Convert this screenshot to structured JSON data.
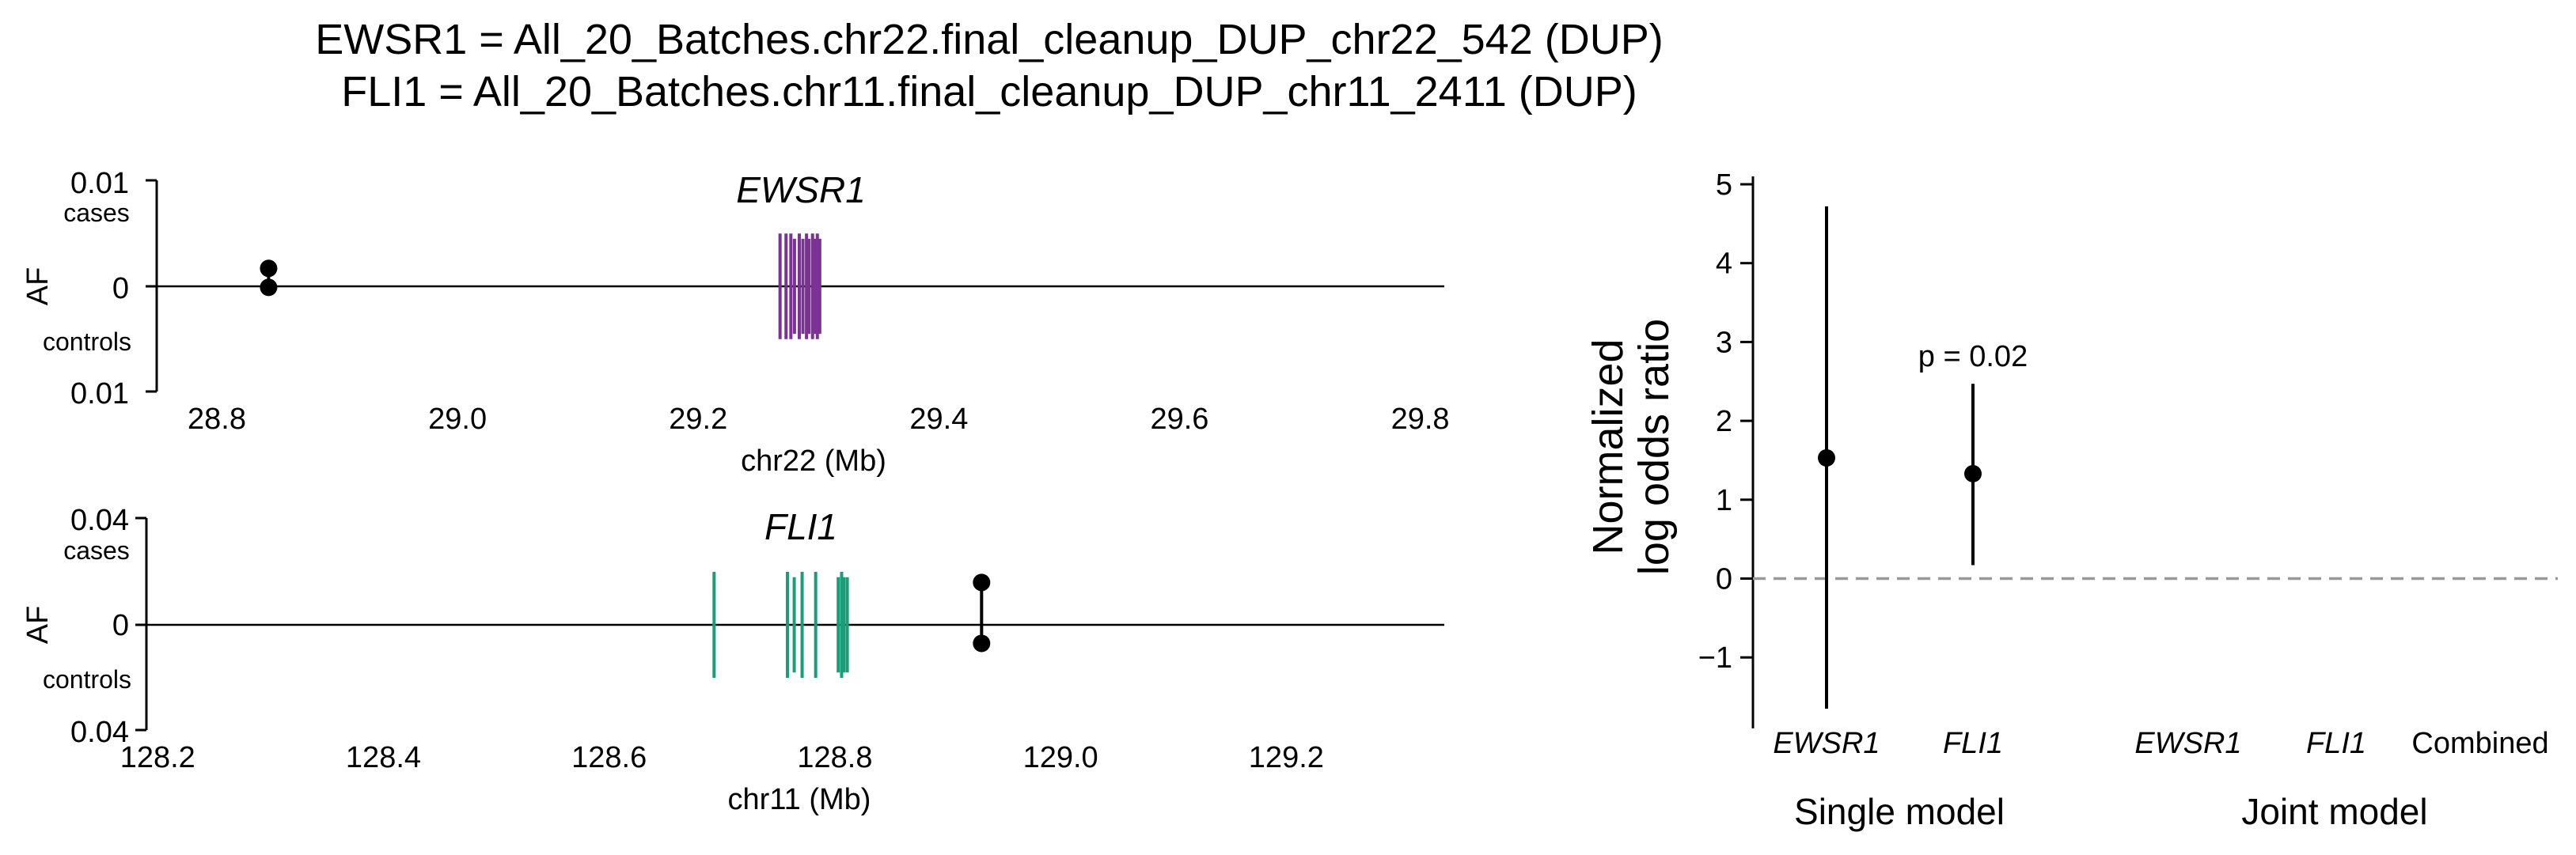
{
  "title_lines": [
    "EWSR1 = All_20_Batches.chr22.final_cleanup_DUP_chr22_542 (DUP)",
    "FLI1 = All_20_Batches.chr11.final_cleanup_DUP_chr11_2411 (DUP)"
  ],
  "colors": {
    "ewsr1": "#7b3294",
    "fli1": "#1a9e77",
    "point": "#000000",
    "axis": "#000000",
    "ref_line": "#999999"
  },
  "chart_data": [
    {
      "type": "scatter",
      "gene": "EWSR1",
      "xlabel": "chr22 (Mb)",
      "ylabel": "AF",
      "xlim": [
        28.75,
        29.82
      ],
      "xticks": [
        "28.8",
        "29.0",
        "29.2",
        "29.4",
        "29.6",
        "29.8"
      ],
      "xtick_values": [
        28.8,
        29.0,
        29.2,
        29.4,
        29.6,
        29.8
      ],
      "ylim": [
        -0.01,
        0.01
      ],
      "yticks": [
        "0.01",
        "0",
        "0.01"
      ],
      "yticks_caption": [
        "cases",
        "controls"
      ],
      "exon_positions": [
        29.268,
        29.273,
        29.277,
        29.28,
        29.284,
        29.287,
        29.29,
        29.292,
        29.295,
        29.297,
        29.299,
        29.301
      ],
      "exon_tall_positions": [
        29.268,
        29.273,
        29.277,
        29.284,
        29.29,
        29.295,
        29.299
      ],
      "exon_half_height_af": 0.005,
      "variants": [
        {
          "pos": 28.843,
          "af_cases": 0.0017,
          "af_controls": 0.0001
        }
      ]
    },
    {
      "type": "scatter",
      "gene": "FLI1",
      "xlabel": "chr11 (Mb)",
      "ylabel": "AF",
      "xlim": [
        128.19,
        129.34
      ],
      "xticks": [
        "128.2",
        "128.4",
        "128.6",
        "128.8",
        "129.0",
        "129.2"
      ],
      "xtick_values": [
        128.2,
        128.4,
        128.6,
        128.8,
        129.0,
        129.2
      ],
      "ylim": [
        -0.04,
        0.04
      ],
      "yticks": [
        "0.04",
        "0",
        "0.04"
      ],
      "yticks_caption": [
        "cases",
        "controls"
      ],
      "exon_positions": [
        128.693,
        128.758,
        128.764,
        128.771,
        128.783,
        128.803,
        128.806,
        128.808,
        128.811
      ],
      "exon_tall_positions": [
        128.693,
        128.758,
        128.771,
        128.783,
        128.806
      ],
      "exon_half_height_af": 0.02,
      "variants": [
        {
          "pos": 128.93,
          "af_cases": 0.016,
          "af_controls": 0.007
        }
      ]
    },
    {
      "type": "scatter",
      "ylabel_lines": [
        "Normalized",
        "log odds ratio"
      ],
      "ylim": [
        -1.9,
        5.1
      ],
      "yticks": [
        "5",
        "4",
        "3",
        "2",
        "1",
        "0",
        "−1"
      ],
      "ytick_values": [
        5,
        4,
        3,
        2,
        1,
        0,
        -1
      ],
      "categories": [
        "EWSR1",
        "FLI1",
        "EWSR1",
        "FLI1",
        "Combined"
      ],
      "category_italic": [
        true,
        true,
        true,
        true,
        false
      ],
      "groups": [
        "Single model",
        "Joint model"
      ],
      "points": [
        {
          "category_index": 0,
          "y": 1.53,
          "low": -1.65,
          "high": 4.72,
          "label": ""
        },
        {
          "category_index": 1,
          "y": 1.33,
          "low": 0.17,
          "high": 2.47,
          "label": "p = 0.02"
        }
      ],
      "ref_line_y": 0
    }
  ]
}
